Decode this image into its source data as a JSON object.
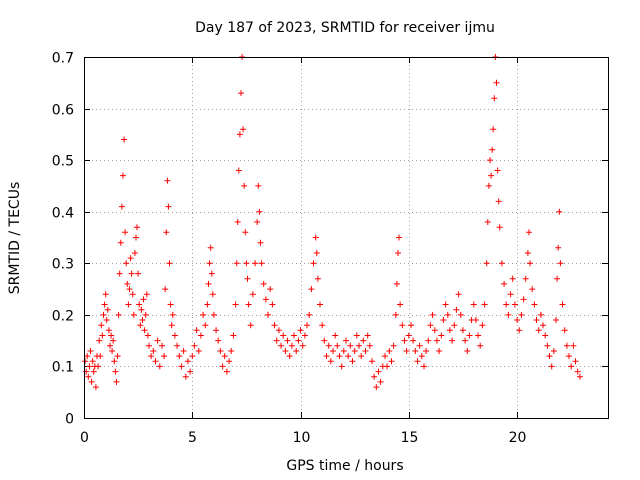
{
  "chart_data": {
    "type": "scatter",
    "title": "Day 187 of 2023, SRMTID for receiver ijmu",
    "xlabel": "GPS time / hours",
    "ylabel": "SRMTID / TECUs",
    "xlim": [
      0,
      24.2
    ],
    "ylim": [
      0,
      0.7
    ],
    "xticks": [
      0,
      5,
      10,
      15,
      20
    ],
    "xtick_labels": [
      "0",
      "5",
      "10",
      "15",
      "20"
    ],
    "yticks": [
      0,
      0.1,
      0.2,
      0.3,
      0.4,
      0.5,
      0.6,
      0.7
    ],
    "ytick_labels": [
      "0",
      "0.1",
      "0.2",
      "0.3",
      "0.4",
      "0.5",
      "0.6",
      "0.7"
    ],
    "grid": true,
    "marker": "plus",
    "series": [
      {
        "name": "SRMTID",
        "color": "#ff0000",
        "points": [
          [
            0.05,
            0.11
          ],
          [
            0.1,
            0.09
          ],
          [
            0.15,
            0.12
          ],
          [
            0.2,
            0.08
          ],
          [
            0.25,
            0.1
          ],
          [
            0.3,
            0.13
          ],
          [
            0.35,
            0.07
          ],
          [
            0.4,
            0.11
          ],
          [
            0.45,
            0.09
          ],
          [
            0.5,
            0.1
          ],
          [
            0.55,
            0.06
          ],
          [
            0.6,
            0.12
          ],
          [
            0.65,
            0.1
          ],
          [
            0.7,
            0.15
          ],
          [
            0.75,
            0.12
          ],
          [
            0.8,
            0.18
          ],
          [
            0.85,
            0.16
          ],
          [
            0.9,
            0.2
          ],
          [
            0.95,
            0.22
          ],
          [
            1.0,
            0.24
          ],
          [
            1.05,
            0.19
          ],
          [
            1.1,
            0.21
          ],
          [
            1.15,
            0.17
          ],
          [
            1.2,
            0.14
          ],
          [
            1.25,
            0.16
          ],
          [
            1.3,
            0.13
          ],
          [
            1.35,
            0.15
          ],
          [
            1.4,
            0.11
          ],
          [
            1.45,
            0.09
          ],
          [
            1.5,
            0.07
          ],
          [
            1.55,
            0.12
          ],
          [
            1.6,
            0.2
          ],
          [
            1.65,
            0.28
          ],
          [
            1.7,
            0.34
          ],
          [
            1.75,
            0.41
          ],
          [
            1.8,
            0.47
          ],
          [
            1.85,
            0.54
          ],
          [
            1.9,
            0.36
          ],
          [
            1.95,
            0.3
          ],
          [
            2.0,
            0.26
          ],
          [
            2.05,
            0.22
          ],
          [
            2.1,
            0.25
          ],
          [
            2.15,
            0.31
          ],
          [
            2.2,
            0.28
          ],
          [
            2.25,
            0.24
          ],
          [
            2.3,
            0.2
          ],
          [
            2.35,
            0.32
          ],
          [
            2.4,
            0.35
          ],
          [
            2.45,
            0.37
          ],
          [
            2.5,
            0.28
          ],
          [
            2.55,
            0.22
          ],
          [
            2.6,
            0.18
          ],
          [
            2.65,
            0.21
          ],
          [
            2.7,
            0.19
          ],
          [
            2.75,
            0.23
          ],
          [
            2.8,
            0.17
          ],
          [
            2.85,
            0.2
          ],
          [
            2.9,
            0.24
          ],
          [
            2.95,
            0.16
          ],
          [
            3.0,
            0.14
          ],
          [
            3.1,
            0.12
          ],
          [
            3.2,
            0.13
          ],
          [
            3.3,
            0.11
          ],
          [
            3.4,
            0.15
          ],
          [
            3.5,
            0.1
          ],
          [
            3.6,
            0.14
          ],
          [
            3.7,
            0.12
          ],
          [
            3.75,
            0.25
          ],
          [
            3.8,
            0.36
          ],
          [
            3.85,
            0.46
          ],
          [
            3.9,
            0.41
          ],
          [
            3.95,
            0.3
          ],
          [
            4.0,
            0.22
          ],
          [
            4.05,
            0.18
          ],
          [
            4.1,
            0.2
          ],
          [
            4.2,
            0.16
          ],
          [
            4.3,
            0.14
          ],
          [
            4.4,
            0.12
          ],
          [
            4.5,
            0.1
          ],
          [
            4.6,
            0.13
          ],
          [
            4.7,
            0.08
          ],
          [
            4.8,
            0.11
          ],
          [
            4.9,
            0.09
          ],
          [
            5.0,
            0.12
          ],
          [
            5.1,
            0.14
          ],
          [
            5.2,
            0.17
          ],
          [
            5.3,
            0.13
          ],
          [
            5.4,
            0.16
          ],
          [
            5.5,
            0.2
          ],
          [
            5.6,
            0.18
          ],
          [
            5.7,
            0.22
          ],
          [
            5.75,
            0.26
          ],
          [
            5.8,
            0.3
          ],
          [
            5.85,
            0.33
          ],
          [
            5.9,
            0.28
          ],
          [
            5.95,
            0.24
          ],
          [
            6.0,
            0.2
          ],
          [
            6.1,
            0.17
          ],
          [
            6.2,
            0.15
          ],
          [
            6.3,
            0.13
          ],
          [
            6.4,
            0.1
          ],
          [
            6.5,
            0.12
          ],
          [
            6.6,
            0.09
          ],
          [
            6.7,
            0.11
          ],
          [
            6.8,
            0.13
          ],
          [
            6.9,
            0.16
          ],
          [
            7.0,
            0.22
          ],
          [
            7.05,
            0.3
          ],
          [
            7.1,
            0.38
          ],
          [
            7.15,
            0.48
          ],
          [
            7.2,
            0.55
          ],
          [
            7.25,
            0.63
          ],
          [
            7.3,
            0.7
          ],
          [
            7.35,
            0.56
          ],
          [
            7.4,
            0.45
          ],
          [
            7.45,
            0.36
          ],
          [
            7.5,
            0.3
          ],
          [
            7.55,
            0.27
          ],
          [
            7.6,
            0.22
          ],
          [
            7.7,
            0.18
          ],
          [
            7.8,
            0.24
          ],
          [
            7.9,
            0.3
          ],
          [
            8.0,
            0.38
          ],
          [
            8.05,
            0.45
          ],
          [
            8.1,
            0.4
          ],
          [
            8.15,
            0.34
          ],
          [
            8.2,
            0.3
          ],
          [
            8.3,
            0.26
          ],
          [
            8.4,
            0.23
          ],
          [
            8.5,
            0.2
          ],
          [
            8.6,
            0.25
          ],
          [
            8.7,
            0.22
          ],
          [
            8.8,
            0.18
          ],
          [
            8.9,
            0.15
          ],
          [
            9.0,
            0.17
          ],
          [
            9.1,
            0.14
          ],
          [
            9.2,
            0.16
          ],
          [
            9.3,
            0.13
          ],
          [
            9.4,
            0.15
          ],
          [
            9.5,
            0.12
          ],
          [
            9.6,
            0.14
          ],
          [
            9.7,
            0.16
          ],
          [
            9.8,
            0.13
          ],
          [
            9.9,
            0.15
          ],
          [
            10.0,
            0.17
          ],
          [
            10.1,
            0.14
          ],
          [
            10.2,
            0.16
          ],
          [
            10.3,
            0.18
          ],
          [
            10.4,
            0.2
          ],
          [
            10.5,
            0.25
          ],
          [
            10.6,
            0.3
          ],
          [
            10.7,
            0.35
          ],
          [
            10.75,
            0.32
          ],
          [
            10.8,
            0.27
          ],
          [
            10.9,
            0.22
          ],
          [
            11.0,
            0.18
          ],
          [
            11.1,
            0.15
          ],
          [
            11.2,
            0.12
          ],
          [
            11.3,
            0.14
          ],
          [
            11.4,
            0.11
          ],
          [
            11.5,
            0.13
          ],
          [
            11.6,
            0.16
          ],
          [
            11.7,
            0.14
          ],
          [
            11.8,
            0.12
          ],
          [
            11.9,
            0.1
          ],
          [
            12.0,
            0.13
          ],
          [
            12.1,
            0.15
          ],
          [
            12.2,
            0.12
          ],
          [
            12.3,
            0.14
          ],
          [
            12.4,
            0.11
          ],
          [
            12.5,
            0.13
          ],
          [
            12.6,
            0.16
          ],
          [
            12.7,
            0.14
          ],
          [
            12.8,
            0.12
          ],
          [
            12.9,
            0.15
          ],
          [
            13.0,
            0.13
          ],
          [
            13.1,
            0.16
          ],
          [
            13.2,
            0.14
          ],
          [
            13.3,
            0.11
          ],
          [
            13.4,
            0.08
          ],
          [
            13.5,
            0.06
          ],
          [
            13.6,
            0.09
          ],
          [
            13.7,
            0.07
          ],
          [
            13.8,
            0.1
          ],
          [
            13.9,
            0.12
          ],
          [
            14.0,
            0.1
          ],
          [
            14.1,
            0.13
          ],
          [
            14.2,
            0.11
          ],
          [
            14.3,
            0.14
          ],
          [
            14.4,
            0.2
          ],
          [
            14.45,
            0.26
          ],
          [
            14.5,
            0.32
          ],
          [
            14.55,
            0.35
          ],
          [
            14.6,
            0.22
          ],
          [
            14.7,
            0.18
          ],
          [
            14.8,
            0.15
          ],
          [
            14.9,
            0.13
          ],
          [
            15.0,
            0.16
          ],
          [
            15.1,
            0.18
          ],
          [
            15.2,
            0.15
          ],
          [
            15.3,
            0.13
          ],
          [
            15.4,
            0.11
          ],
          [
            15.5,
            0.14
          ],
          [
            15.6,
            0.12
          ],
          [
            15.7,
            0.1
          ],
          [
            15.8,
            0.13
          ],
          [
            15.9,
            0.15
          ],
          [
            16.0,
            0.18
          ],
          [
            16.1,
            0.2
          ],
          [
            16.2,
            0.17
          ],
          [
            16.3,
            0.15
          ],
          [
            16.4,
            0.13
          ],
          [
            16.5,
            0.16
          ],
          [
            16.6,
            0.19
          ],
          [
            16.7,
            0.22
          ],
          [
            16.8,
            0.2
          ],
          [
            16.9,
            0.17
          ],
          [
            17.0,
            0.15
          ],
          [
            17.1,
            0.18
          ],
          [
            17.2,
            0.21
          ],
          [
            17.3,
            0.24
          ],
          [
            17.4,
            0.2
          ],
          [
            17.5,
            0.17
          ],
          [
            17.6,
            0.15
          ],
          [
            17.7,
            0.13
          ],
          [
            17.8,
            0.16
          ],
          [
            17.9,
            0.19
          ],
          [
            18.0,
            0.22
          ],
          [
            18.1,
            0.19
          ],
          [
            18.2,
            0.16
          ],
          [
            18.3,
            0.14
          ],
          [
            18.4,
            0.18
          ],
          [
            18.5,
            0.22
          ],
          [
            18.6,
            0.3
          ],
          [
            18.65,
            0.38
          ],
          [
            18.7,
            0.45
          ],
          [
            18.75,
            0.5
          ],
          [
            18.8,
            0.47
          ],
          [
            18.85,
            0.52
          ],
          [
            18.9,
            0.56
          ],
          [
            18.95,
            0.62
          ],
          [
            19.0,
            0.7
          ],
          [
            19.05,
            0.65
          ],
          [
            19.1,
            0.48
          ],
          [
            19.15,
            0.42
          ],
          [
            19.2,
            0.37
          ],
          [
            19.3,
            0.3
          ],
          [
            19.4,
            0.26
          ],
          [
            19.5,
            0.22
          ],
          [
            19.6,
            0.2
          ],
          [
            19.7,
            0.24
          ],
          [
            19.8,
            0.27
          ],
          [
            19.9,
            0.22
          ],
          [
            20.0,
            0.19
          ],
          [
            20.1,
            0.17
          ],
          [
            20.2,
            0.2
          ],
          [
            20.3,
            0.23
          ],
          [
            20.4,
            0.27
          ],
          [
            20.5,
            0.32
          ],
          [
            20.55,
            0.36
          ],
          [
            20.6,
            0.3
          ],
          [
            20.7,
            0.25
          ],
          [
            20.8,
            0.22
          ],
          [
            20.9,
            0.19
          ],
          [
            21.0,
            0.17
          ],
          [
            21.1,
            0.2
          ],
          [
            21.2,
            0.18
          ],
          [
            21.3,
            0.16
          ],
          [
            21.4,
            0.14
          ],
          [
            21.5,
            0.12
          ],
          [
            21.6,
            0.1
          ],
          [
            21.7,
            0.13
          ],
          [
            21.8,
            0.19
          ],
          [
            21.85,
            0.27
          ],
          [
            21.9,
            0.33
          ],
          [
            21.95,
            0.4
          ],
          [
            22.0,
            0.3
          ],
          [
            22.1,
            0.22
          ],
          [
            22.2,
            0.17
          ],
          [
            22.3,
            0.14
          ],
          [
            22.4,
            0.12
          ],
          [
            22.5,
            0.1
          ],
          [
            22.6,
            0.14
          ],
          [
            22.7,
            0.11
          ],
          [
            22.8,
            0.09
          ],
          [
            22.9,
            0.08
          ]
        ]
      }
    ]
  }
}
